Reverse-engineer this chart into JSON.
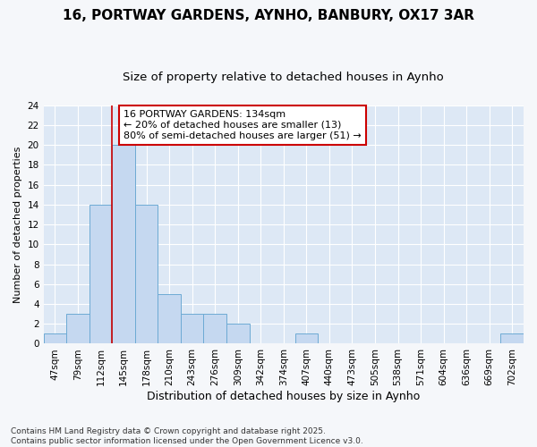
{
  "title_line1": "16, PORTWAY GARDENS, AYNHO, BANBURY, OX17 3AR",
  "title_line2": "Size of property relative to detached houses in Aynho",
  "xlabel": "Distribution of detached houses by size in Aynho",
  "ylabel": "Number of detached properties",
  "footnote": "Contains HM Land Registry data © Crown copyright and database right 2025.\nContains public sector information licensed under the Open Government Licence v3.0.",
  "bin_labels": [
    "47sqm",
    "79sqm",
    "112sqm",
    "145sqm",
    "178sqm",
    "210sqm",
    "243sqm",
    "276sqm",
    "309sqm",
    "342sqm",
    "374sqm",
    "407sqm",
    "440sqm",
    "473sqm",
    "505sqm",
    "538sqm",
    "571sqm",
    "604sqm",
    "636sqm",
    "669sqm",
    "702sqm"
  ],
  "bar_values": [
    1,
    3,
    14,
    20,
    14,
    5,
    3,
    3,
    2,
    0,
    0,
    1,
    0,
    0,
    0,
    0,
    0,
    0,
    0,
    0,
    1
  ],
  "ylim": [
    0,
    24
  ],
  "yticks": [
    0,
    2,
    4,
    6,
    8,
    10,
    12,
    14,
    16,
    18,
    20,
    22,
    24
  ],
  "bar_color": "#c5d8f0",
  "bar_edge_color": "#6daad4",
  "plot_bg_color": "#dde8f5",
  "figure_bg_color": "#f5f7fa",
  "grid_color": "#ffffff",
  "red_line_x": 3.0,
  "annotation_text": "16 PORTWAY GARDENS: 134sqm\n← 20% of detached houses are smaller (13)\n80% of semi-detached houses are larger (51) →",
  "annotation_box_color": "#ffffff",
  "annotation_box_edge": "#cc0000",
  "red_line_color": "#cc0000",
  "title1_fontsize": 11,
  "title2_fontsize": 9.5,
  "xlabel_fontsize": 9,
  "ylabel_fontsize": 8,
  "tick_fontsize": 7.5,
  "annot_fontsize": 8
}
